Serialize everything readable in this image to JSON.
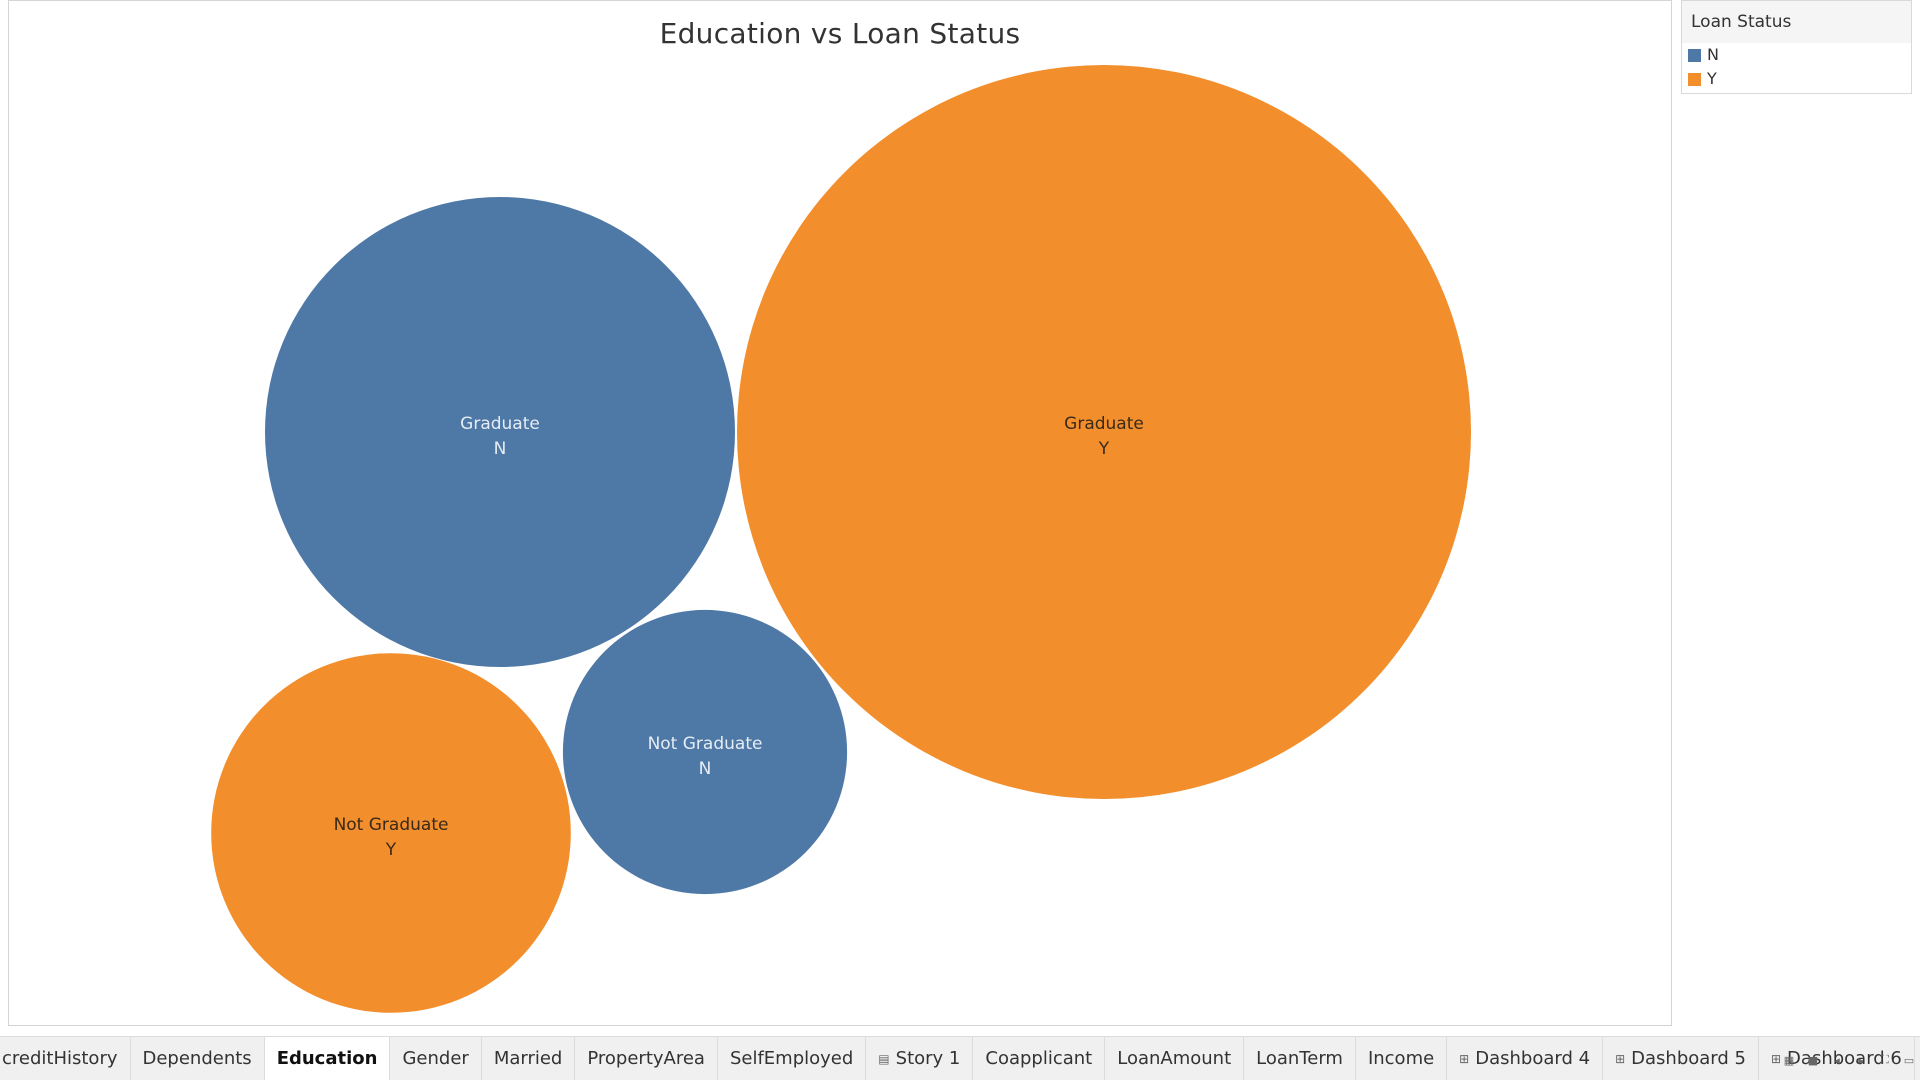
{
  "chart_data": {
    "type": "bubble",
    "title": "Education vs Loan Status",
    "legend": {
      "title": "Loan Status",
      "placement": "top-right",
      "items": [
        {
          "label": "N",
          "color": "#4e79a7"
        },
        {
          "label": "Y",
          "color": "#f28e2b"
        }
      ]
    },
    "bubbles": [
      {
        "education": "Graduate",
        "loan_status": "Y",
        "relative_size": 1.0
      },
      {
        "education": "Graduate",
        "loan_status": "N",
        "relative_size": 0.41
      },
      {
        "education": "Not Graduate",
        "loan_status": "Y",
        "relative_size": 0.24
      },
      {
        "education": "Not Graduate",
        "loan_status": "N",
        "relative_size": 0.15
      }
    ]
  },
  "tabs": [
    {
      "label": "creditHistory",
      "icon": "",
      "active": false
    },
    {
      "label": "Dependents",
      "icon": "",
      "active": false
    },
    {
      "label": "Education",
      "icon": "",
      "active": true
    },
    {
      "label": "Gender",
      "icon": "",
      "active": false
    },
    {
      "label": "Married",
      "icon": "",
      "active": false
    },
    {
      "label": "PropertyArea",
      "icon": "",
      "active": false
    },
    {
      "label": "SelfEmployed",
      "icon": "",
      "active": false
    },
    {
      "label": "Story 1",
      "icon": "story-icon",
      "active": false
    },
    {
      "label": "Coapplicant",
      "icon": "",
      "active": false
    },
    {
      "label": "LoanAmount",
      "icon": "",
      "active": false
    },
    {
      "label": "LoanTerm",
      "icon": "",
      "active": false
    },
    {
      "label": "Income",
      "icon": "",
      "active": false
    },
    {
      "label": "Dashboard 4",
      "icon": "dashboard-icon",
      "active": false
    },
    {
      "label": "Dashboard 5",
      "icon": "dashboard-icon",
      "active": false
    },
    {
      "label": "Dashboard 6",
      "icon": "dashboard-icon",
      "active": false
    }
  ],
  "nav_controls": [
    "grid-view-icon",
    "filmstrip-icon",
    "prev-icon",
    "next-icon",
    "fullscreen-icon",
    "presentation-icon"
  ]
}
